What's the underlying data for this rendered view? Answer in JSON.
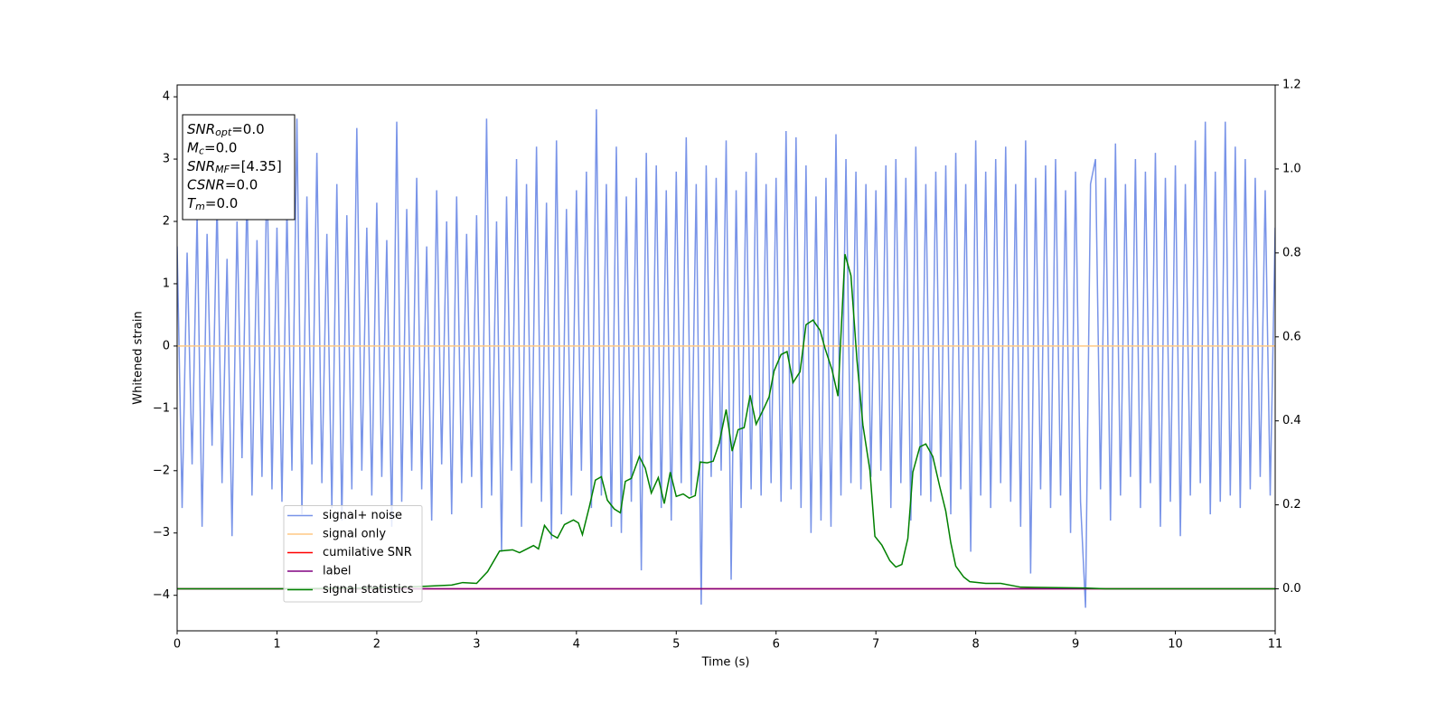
{
  "chart_data": {
    "type": "line",
    "xlabel": "Time (s)",
    "ylabel": "Whitened strain",
    "xlim": [
      0,
      11
    ],
    "ylim": [
      -4.57,
      4.19
    ],
    "y2lim": [
      -0.1,
      1.2
    ],
    "xticks": [
      0,
      1,
      2,
      3,
      4,
      5,
      6,
      7,
      8,
      9,
      10,
      11
    ],
    "yticks": [
      {
        "value": -4,
        "label": "−4"
      },
      {
        "value": -3,
        "label": "−3"
      },
      {
        "value": -2,
        "label": "−2"
      },
      {
        "value": -1,
        "label": "−1"
      },
      0,
      1,
      2,
      3,
      4
    ],
    "y2ticks": [
      {
        "value": 0,
        "label": "0.0"
      },
      {
        "value": 0.2,
        "label": "0.2"
      },
      {
        "value": 0.4,
        "label": "0.4"
      },
      {
        "value": 0.6,
        "label": "0.6"
      },
      {
        "value": 0.8,
        "label": "0.8"
      },
      {
        "value": 1,
        "label": "1.0"
      },
      {
        "value": 1.2,
        "label": "1.2"
      }
    ],
    "legend": "lower left",
    "annotation": [
      {
        "text": "SNR",
        "sub": "opt",
        "rest": "=0.0"
      },
      {
        "text": "M",
        "sub": "c",
        "rest": "=0.0"
      },
      {
        "text": "SNR",
        "sub": "MF",
        "rest": "=[4.35]"
      },
      {
        "text": "CSNR",
        "sub": null,
        "rest": "=0.0"
      },
      {
        "text": "T",
        "sub": "m",
        "rest": "=0.0"
      }
    ],
    "series": [
      {
        "name": "signal+ noise",
        "color": "#7994e8",
        "axis": "y",
        "x": [
          0,
          0.05,
          0.1,
          0.15,
          0.2,
          0.25,
          0.3,
          0.35,
          0.4,
          0.45,
          0.5,
          0.55,
          0.6,
          0.65,
          0.7,
          0.75,
          0.8,
          0.85,
          0.9,
          0.95,
          1,
          1.05,
          1.1,
          1.15,
          1.2,
          1.25,
          1.3,
          1.35,
          1.4,
          1.45,
          1.5,
          1.55,
          1.6,
          1.65,
          1.7,
          1.75,
          1.8,
          1.85,
          1.9,
          1.95,
          2,
          2.05,
          2.1,
          2.15,
          2.2,
          2.25,
          2.3,
          2.35,
          2.4,
          2.45,
          2.5,
          2.55,
          2.6,
          2.65,
          2.7,
          2.75,
          2.8,
          2.85,
          2.9,
          2.95,
          3,
          3.05,
          3.1,
          3.15,
          3.2,
          3.25,
          3.3,
          3.35,
          3.4,
          3.45,
          3.5,
          3.55,
          3.6,
          3.65,
          3.7,
          3.75,
          3.8,
          3.85,
          3.9,
          3.95,
          4,
          4.05,
          4.1,
          4.15,
          4.2,
          4.25,
          4.3,
          4.35,
          4.4,
          4.45,
          4.5,
          4.55,
          4.6,
          4.65,
          4.7,
          4.75,
          4.8,
          4.85,
          4.9,
          4.95,
          5,
          5.05,
          5.1,
          5.15,
          5.2,
          5.25,
          5.3,
          5.35,
          5.4,
          5.45,
          5.5,
          5.55,
          5.6,
          5.65,
          5.7,
          5.75,
          5.8,
          5.85,
          5.9,
          5.95,
          6,
          6.05,
          6.1,
          6.15,
          6.2,
          6.25,
          6.3,
          6.35,
          6.4,
          6.45,
          6.5,
          6.55,
          6.6,
          6.65,
          6.7,
          6.75,
          6.8,
          6.85,
          6.9,
          6.95,
          7,
          7.05,
          7.1,
          7.15,
          7.2,
          7.25,
          7.3,
          7.35,
          7.4,
          7.45,
          7.5,
          7.55,
          7.6,
          7.65,
          7.7,
          7.75,
          7.8,
          7.85,
          7.9,
          7.95,
          8,
          8.05,
          8.1,
          8.15,
          8.2,
          8.25,
          8.3,
          8.35,
          8.4,
          8.45,
          8.5,
          8.55,
          8.6,
          8.65,
          8.7,
          8.75,
          8.8,
          8.85,
          8.9,
          8.95,
          9,
          9.05,
          9.1,
          9.15,
          9.2,
          9.25,
          9.3,
          9.35,
          9.4,
          9.45,
          9.5,
          9.55,
          9.6,
          9.65,
          9.7,
          9.75,
          9.8,
          9.85,
          9.9,
          9.95,
          10,
          10.05,
          10.1,
          10.15,
          10.2,
          10.25,
          10.3,
          10.35,
          10.4,
          10.45,
          10.5,
          10.55,
          10.6,
          10.65,
          10.7,
          10.75,
          10.8,
          10.85,
          10.9,
          10.95,
          11
        ],
        "values": [
          1.6,
          -2.6,
          1.5,
          -1.9,
          2.1,
          -2.9,
          1.8,
          -1.6,
          2.3,
          -2.2,
          1.4,
          -3.05,
          2.0,
          -1.8,
          2.5,
          -2.4,
          1.7,
          -2.1,
          2.9,
          -2.3,
          1.9,
          -2.5,
          2.2,
          -2.0,
          3.65,
          -2.7,
          2.4,
          -1.9,
          3.1,
          -2.2,
          1.8,
          -2.6,
          2.6,
          -2.8,
          2.1,
          -2.3,
          3.5,
          -2.0,
          1.9,
          -2.4,
          2.3,
          -2.1,
          1.7,
          -2.9,
          3.6,
          -2.5,
          2.2,
          -2.0,
          2.7,
          -2.3,
          1.6,
          -2.8,
          2.5,
          -1.9,
          2.0,
          -2.7,
          2.4,
          -2.2,
          1.8,
          -2.1,
          2.1,
          -2.6,
          3.65,
          -2.4,
          2.0,
          -3.3,
          2.4,
          -2.0,
          3.0,
          -2.9,
          2.6,
          -2.2,
          3.2,
          -2.5,
          2.3,
          -3.1,
          3.3,
          -2.7,
          2.2,
          -2.4,
          2.5,
          -2.0,
          2.8,
          -2.6,
          3.8,
          -2.4,
          2.6,
          -2.9,
          3.2,
          -3.0,
          2.4,
          -2.5,
          2.7,
          -3.6,
          3.1,
          -2.3,
          2.9,
          -2.6,
          2.5,
          -2.8,
          2.8,
          -2.2,
          3.35,
          -2.4,
          2.6,
          -4.15,
          2.9,
          -2.1,
          2.7,
          -2.0,
          3.3,
          -3.75,
          2.5,
          -2.6,
          2.8,
          -2.3,
          3.1,
          -2.4,
          2.6,
          -2.2,
          2.7,
          -2.5,
          3.45,
          -2.3,
          3.35,
          -2.6,
          2.9,
          -3.0,
          2.4,
          -2.8,
          2.7,
          -2.9,
          3.4,
          -2.4,
          3.0,
          -2.2,
          2.8,
          -2.3,
          2.6,
          -2.1,
          2.5,
          -2.0,
          2.9,
          -2.6,
          3.0,
          -2.2,
          2.7,
          -2.8,
          3.2,
          -2.4,
          2.6,
          -2.5,
          2.8,
          -2.1,
          2.9,
          -2.7,
          3.1,
          -2.3,
          2.6,
          -3.3,
          3.3,
          -2.4,
          2.8,
          -2.6,
          3.0,
          -2.2,
          3.2,
          -2.5,
          2.6,
          -2.9,
          3.3,
          -3.65,
          2.7,
          -2.3,
          2.9,
          -2.6,
          3.0,
          -2.4,
          2.5,
          -3.0,
          2.8,
          -2.5,
          -4.2,
          2.6,
          3.0,
          -2.3,
          2.7,
          -2.8,
          3.25,
          -2.4,
          2.6,
          -2.1,
          3.0,
          -2.6,
          2.8,
          -2.2,
          3.1,
          -2.9,
          2.7,
          -2.5,
          2.9,
          -3.05,
          2.6,
          -2.4,
          3.3,
          -2.2,
          3.6,
          -2.7,
          2.8,
          -2.5,
          3.6,
          -2.4,
          3.2,
          -2.6,
          3.0,
          -2.3,
          2.7,
          -2.1,
          2.5,
          -2.4,
          1.9
        ]
      },
      {
        "name": "signal only",
        "color": "#ffc984",
        "axis": "y",
        "x": [
          0,
          11
        ],
        "values": [
          0,
          0
        ]
      },
      {
        "name": "cumilative SNR",
        "color": "#ff0000",
        "axis": "y2",
        "x": [
          0,
          11
        ],
        "values": [
          0,
          0
        ]
      },
      {
        "name": "label",
        "color": "#800080",
        "axis": "y2",
        "x": [
          0,
          11
        ],
        "values": [
          0,
          0
        ]
      },
      {
        "name": "signal statistics",
        "color": "#008000",
        "axis": "y2",
        "x": [
          0,
          1,
          2,
          2.48,
          2.75,
          2.86,
          3.0,
          3.11,
          3.23,
          3.36,
          3.43,
          3.57,
          3.62,
          3.68,
          3.75,
          3.81,
          3.88,
          3.97,
          4.02,
          4.06,
          4.13,
          4.19,
          4.25,
          4.31,
          4.38,
          4.44,
          4.49,
          4.55,
          4.63,
          4.69,
          4.75,
          4.82,
          4.88,
          4.94,
          5.0,
          5.07,
          5.13,
          5.19,
          5.24,
          5.31,
          5.37,
          5.43,
          5.5,
          5.56,
          5.62,
          5.68,
          5.74,
          5.8,
          5.88,
          5.93,
          5.98,
          6.05,
          6.11,
          6.17,
          6.24,
          6.3,
          6.37,
          6.44,
          6.49,
          6.56,
          6.62,
          6.69,
          6.75,
          6.81,
          6.87,
          6.94,
          6.99,
          7.06,
          7.14,
          7.2,
          7.26,
          7.32,
          7.37,
          7.44,
          7.5,
          7.57,
          7.64,
          7.7,
          7.75,
          7.8,
          7.88,
          7.94,
          8.1,
          8.25,
          8.45,
          9.09,
          9.3,
          11
        ],
        "values": [
          0,
          0,
          0.002,
          0.006,
          0.009,
          0.015,
          0.013,
          0.041,
          0.09,
          0.093,
          0.086,
          0.103,
          0.095,
          0.151,
          0.129,
          0.121,
          0.153,
          0.164,
          0.157,
          0.129,
          0.196,
          0.259,
          0.267,
          0.211,
          0.19,
          0.181,
          0.256,
          0.263,
          0.315,
          0.287,
          0.228,
          0.265,
          0.203,
          0.278,
          0.22,
          0.226,
          0.216,
          0.222,
          0.302,
          0.3,
          0.304,
          0.347,
          0.427,
          0.328,
          0.379,
          0.384,
          0.461,
          0.392,
          0.431,
          0.457,
          0.519,
          0.558,
          0.565,
          0.491,
          0.517,
          0.629,
          0.64,
          0.616,
          0.573,
          0.522,
          0.459,
          0.797,
          0.746,
          0.545,
          0.39,
          0.282,
          0.125,
          0.104,
          0.067,
          0.052,
          0.058,
          0.12,
          0.278,
          0.338,
          0.345,
          0.315,
          0.243,
          0.185,
          0.11,
          0.054,
          0.028,
          0.017,
          0.013,
          0.013,
          0.004,
          0.002,
          0,
          0
        ]
      }
    ]
  }
}
